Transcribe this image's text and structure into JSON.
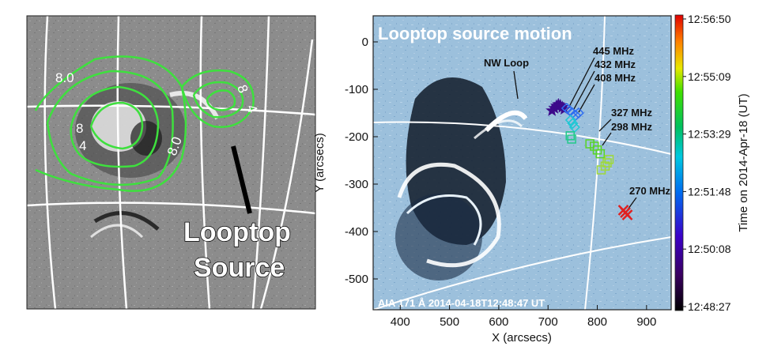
{
  "left_panel": {
    "label_line1": "Looptop",
    "label_line2": "Source",
    "contour_labels": [
      "8.0",
      "8",
      "4",
      "8.0",
      "8",
      "4"
    ]
  },
  "chart_data": {
    "type": "scatter",
    "title": "Looptop source motion",
    "xlabel": "X (arcsecs)",
    "ylabel": "Y (arcsecs)",
    "xlim": [
      345,
      950
    ],
    "ylim": [
      -565,
      55
    ],
    "xticks": [
      400,
      500,
      600,
      700,
      800,
      900
    ],
    "yticks": [
      0,
      -100,
      -200,
      -300,
      -400,
      -500
    ],
    "colorbar": {
      "label": "Time on 2014-Apr-18 (UT)",
      "ticks": [
        "12:56:50",
        "12:55:09",
        "12:53:29",
        "12:51:48",
        "12:50:08",
        "12:48:27"
      ]
    },
    "annotations": {
      "nw_loop": "NW Loop",
      "frequencies": [
        "445 MHz",
        "432 MHz",
        "408 MHz",
        "327 MHz",
        "298 MHz",
        "270 MHz"
      ]
    },
    "footer": "AIA 171 Å 2014-04-18T12:48:47 UT",
    "series": [
      {
        "marker": "star",
        "color": "#3d0a8a",
        "x": [
          708,
          713,
          717,
          721,
          725,
          729,
          733
        ],
        "y": [
          -145,
          -140,
          -135,
          -132,
          -134,
          -138,
          -142
        ]
      },
      {
        "marker": "diamond",
        "color": "#2e6df0",
        "x": [
          738,
          744,
          750,
          756,
          762
        ],
        "y": [
          -140,
          -145,
          -150,
          -155,
          -150
        ]
      },
      {
        "marker": "diamond",
        "color": "#1fc7d4",
        "x": [
          746,
          750,
          754
        ],
        "y": [
          -165,
          -172,
          -180
        ]
      },
      {
        "marker": "square",
        "color": "#22c98a",
        "x": [
          745,
          748
        ],
        "y": [
          -198,
          -205
        ]
      },
      {
        "marker": "square",
        "color": "#58d426",
        "x": [
          785,
          794,
          800,
          806
        ],
        "y": [
          -215,
          -220,
          -228,
          -236
        ]
      },
      {
        "marker": "square",
        "color": "#9fd93a",
        "x": [
          808,
          816,
          820,
          824
        ],
        "y": [
          -270,
          -262,
          -255,
          -248
        ]
      },
      {
        "marker": "x",
        "color": "#e02020",
        "x": [
          853,
          857,
          861
        ],
        "y": [
          -355,
          -360,
          -365
        ]
      }
    ]
  }
}
